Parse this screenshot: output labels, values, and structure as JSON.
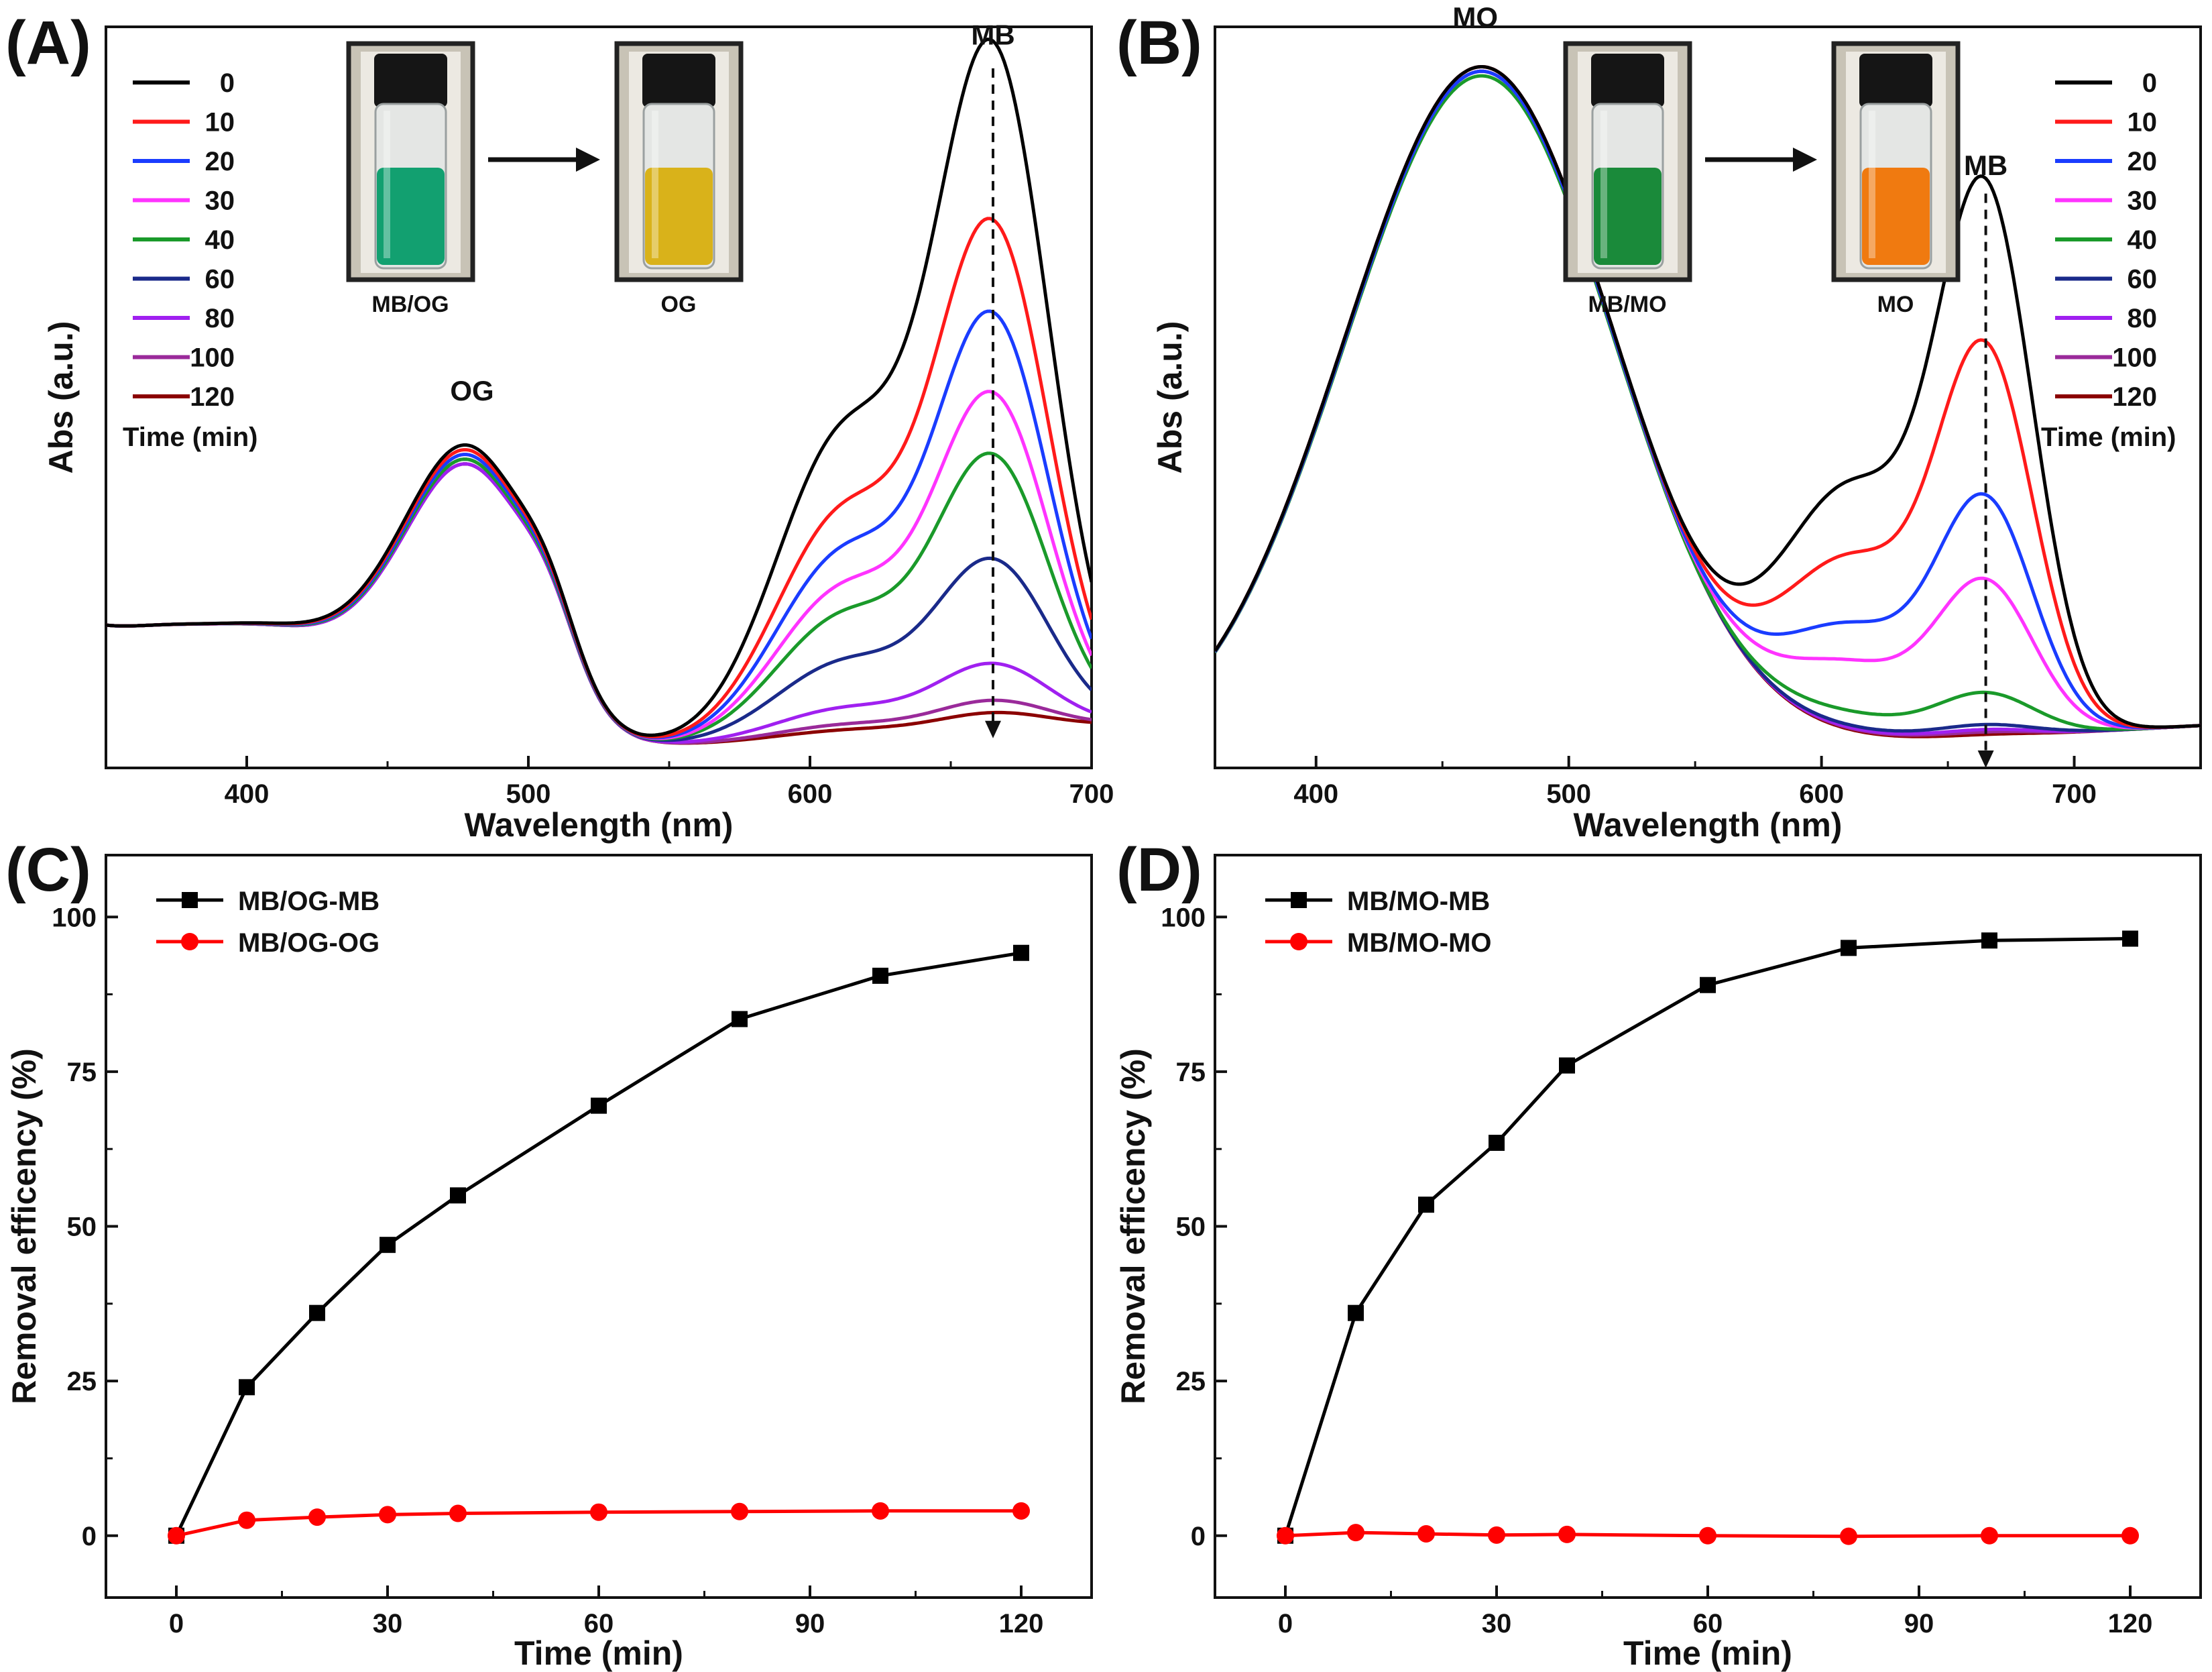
{
  "chart_data": [
    {
      "id": "A",
      "type": "line",
      "panel_label": "(A)",
      "xlabel": "Wavelength (nm)",
      "ylabel": "Abs (a.u.)",
      "xlim": [
        350,
        700
      ],
      "ylim": [
        0,
        1.25
      ],
      "xticks": [
        400,
        500,
        600,
        700
      ],
      "legend_title": "Time (min)",
      "legend_position": "top-left",
      "legend": [
        "0",
        "10",
        "20",
        "30",
        "40",
        "60",
        "80",
        "100",
        "120"
      ],
      "colors": [
        "#000000",
        "#ff1a1a",
        "#1a3cff",
        "#ff33ff",
        "#1a9a2a",
        "#1a2a8a",
        "#a020f0",
        "#9a2a9a",
        "#8b0000"
      ],
      "peak_labels": [
        "OG",
        "MB"
      ],
      "peak_label_positions": [
        [
          480,
          0.62
        ],
        [
          665,
          1.22
        ]
      ],
      "arrow": {
        "x": 665,
        "from": 1.18,
        "to": 0.05
      },
      "vials": [
        {
          "label": "MB/OG",
          "liquid": "#12a070"
        },
        {
          "label": "OG",
          "liquid": "#d9b21a"
        }
      ],
      "model": {
        "dye1_amp": [
          0.62,
          0.61,
          0.6,
          0.6,
          0.59,
          0.59,
          0.58,
          0.58,
          0.58
        ],
        "dye1_center": 482,
        "mb_amp": [
          1.12,
          0.83,
          0.68,
          0.55,
          0.45,
          0.28,
          0.11,
          0.05,
          0.03
        ]
      }
    },
    {
      "id": "B",
      "type": "line",
      "panel_label": "(B)",
      "xlabel": "Wavelength (nm)",
      "ylabel": "Abs (a.u.)",
      "xlim": [
        360,
        750
      ],
      "ylim": [
        0,
        1.6
      ],
      "xticks": [
        400,
        500,
        600,
        700
      ],
      "legend_title": "Time (min)",
      "legend_position": "top-right",
      "legend": [
        "0",
        "10",
        "20",
        "30",
        "40",
        "60",
        "80",
        "100",
        "120"
      ],
      "colors": [
        "#000000",
        "#ff1a1a",
        "#1a3cff",
        "#ff33ff",
        "#1a9a2a",
        "#1a2a8a",
        "#a020f0",
        "#9a2a9a",
        "#8b0000"
      ],
      "peak_labels": [
        "MO",
        "MB"
      ],
      "peak_label_positions": [
        [
          463,
          1.6
        ],
        [
          665,
          1.28
        ]
      ],
      "arrow": {
        "x": 665,
        "from": 1.24,
        "to": 0.0
      },
      "vials": [
        {
          "label": "MB/MO",
          "liquid": "#1a8a3a"
        },
        {
          "label": "MO",
          "liquid": "#f07a10"
        }
      ],
      "model": {
        "dye1_amp": [
          1.51,
          1.51,
          1.5,
          1.5,
          1.49,
          1.5,
          1.5,
          1.51,
          1.5
        ],
        "dye1_center": 467,
        "mb_amp": [
          1.13,
          0.8,
          0.49,
          0.32,
          0.09,
          0.025,
          0.015,
          0.01,
          0.005
        ]
      }
    },
    {
      "id": "C",
      "type": "line",
      "panel_label": "(C)",
      "xlabel": "Time (min)",
      "ylabel": "Removal efficency (%)",
      "xlim": [
        -10,
        130
      ],
      "ylim": [
        -10,
        110
      ],
      "xticks": [
        0,
        30,
        60,
        90,
        120
      ],
      "yticks": [
        0,
        25,
        50,
        75,
        100
      ],
      "legend_position": "top-left",
      "x": [
        0,
        10,
        20,
        30,
        40,
        60,
        80,
        100,
        120
      ],
      "series": [
        {
          "name": "MB/OG-MB",
          "color": "#000000",
          "marker": "square",
          "values": [
            0,
            24,
            36,
            47,
            55,
            69.5,
            83.5,
            90.5,
            94.2
          ]
        },
        {
          "name": "MB/OG-OG",
          "color": "#ff0000",
          "marker": "circle",
          "values": [
            0,
            2.5,
            3.0,
            3.4,
            3.6,
            3.8,
            3.9,
            4.0,
            4.0
          ]
        }
      ]
    },
    {
      "id": "D",
      "type": "line",
      "panel_label": "(D)",
      "xlabel": "Time (min)",
      "ylabel": "Removal efficency (%)",
      "xlim": [
        -10,
        130
      ],
      "ylim": [
        -10,
        110
      ],
      "xticks": [
        0,
        30,
        60,
        90,
        120
      ],
      "yticks": [
        0,
        25,
        50,
        75,
        100
      ],
      "legend_position": "top-left",
      "x": [
        0,
        10,
        20,
        30,
        40,
        60,
        80,
        100,
        120
      ],
      "series": [
        {
          "name": "MB/MO-MB",
          "color": "#000000",
          "marker": "square",
          "values": [
            0,
            36,
            53.5,
            63.5,
            76,
            89,
            95,
            96.2,
            96.5
          ]
        },
        {
          "name": "MB/MO-MO",
          "color": "#ff0000",
          "marker": "circle",
          "values": [
            0,
            0.5,
            0.3,
            0.1,
            0.2,
            0.0,
            -0.1,
            0.0,
            0.0
          ]
        }
      ]
    }
  ]
}
